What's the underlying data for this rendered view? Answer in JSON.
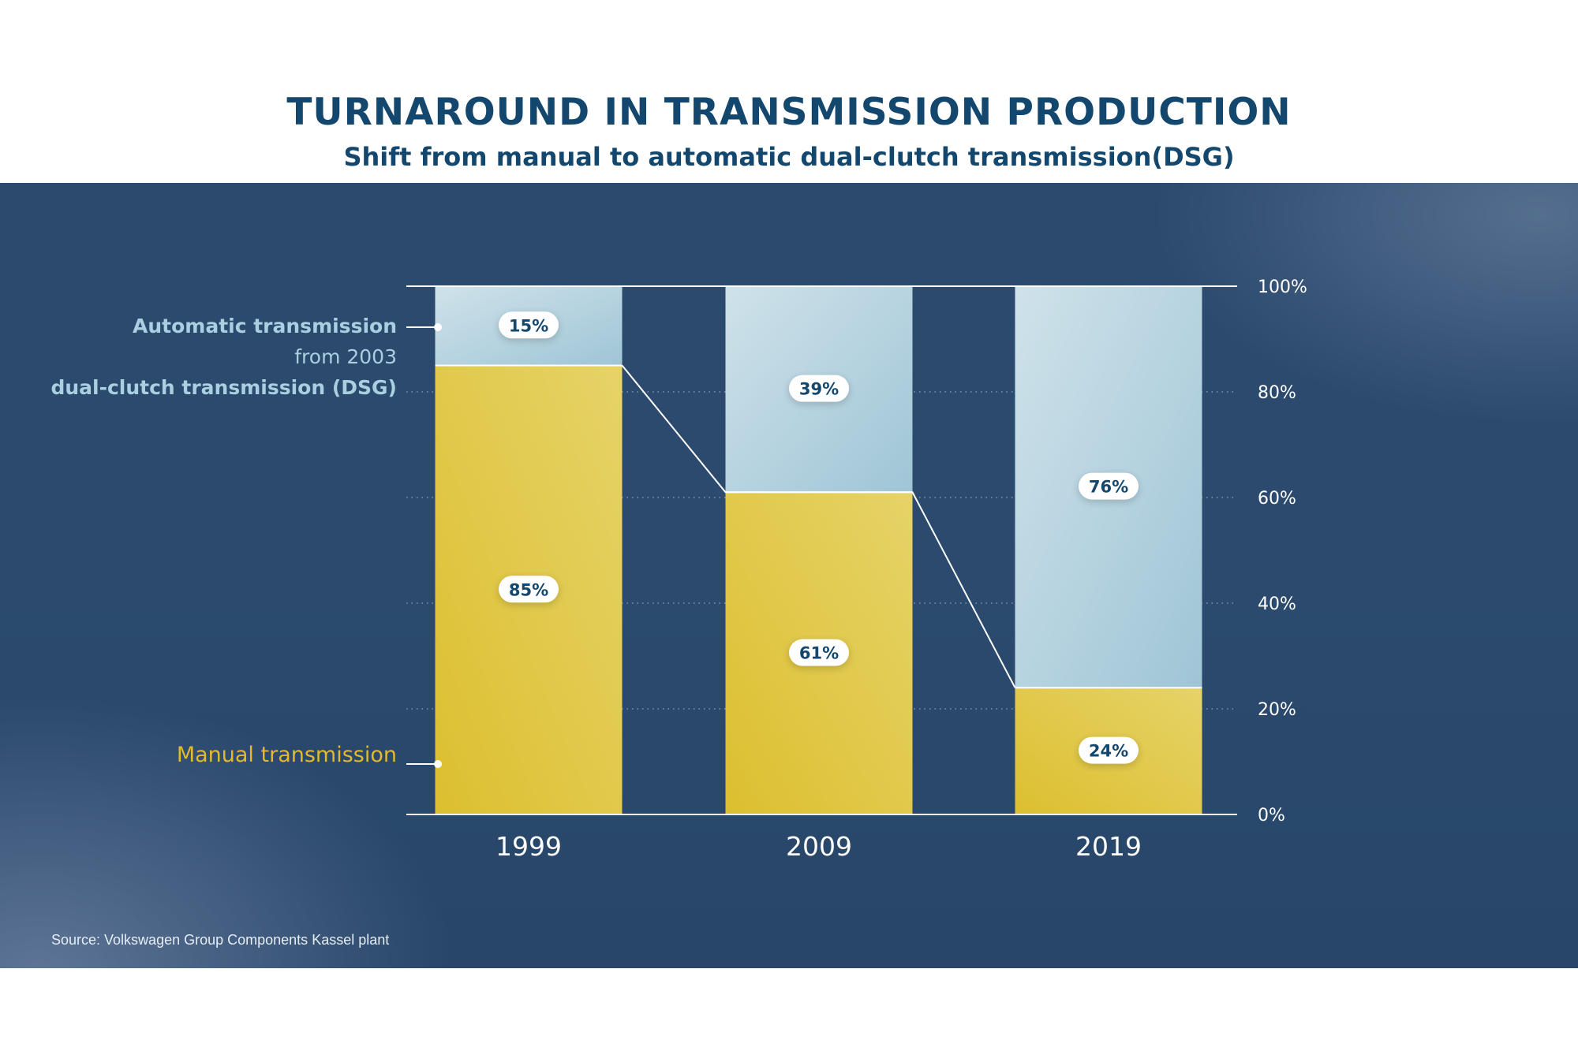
{
  "title": "TURNAROUND IN TRANSMISSION PRODUCTION",
  "subtitle": "Shift from manual to automatic dual-clutch transmission(DSG)",
  "source": "Source: Volkswagen Group Components Kassel plant",
  "legend": {
    "automatic_line1": "Automatic transmission",
    "automatic_line2": "from 2003",
    "automatic_line3": "dual-clutch transmission (DSG)",
    "manual": "Manual transmission"
  },
  "colors": {
    "manual": "#dcc33a",
    "automatic": "#a8cbd8",
    "automatic_legend": "#a9cfe0",
    "manual_legend": "#e3b92e",
    "axis_text": "#ffffff",
    "label_text": "#13476e"
  },
  "chart_data": {
    "type": "bar",
    "stacked": true,
    "categories": [
      "1999",
      "2009",
      "2019"
    ],
    "series": [
      {
        "name": "Manual transmission",
        "values": [
          85,
          61,
          24
        ],
        "labels": [
          "85%",
          "61%",
          "24%"
        ]
      },
      {
        "name": "Automatic transmission",
        "values": [
          15,
          39,
          76
        ],
        "labels": [
          "15%",
          "39%",
          "76%"
        ]
      }
    ],
    "ylim": [
      0,
      100
    ],
    "yticks": [
      0,
      20,
      40,
      60,
      80,
      100
    ],
    "ytick_labels": [
      "0%",
      "20%",
      "40%",
      "60%",
      "80%",
      "100%"
    ],
    "grid": "dotted",
    "legend_position": "left"
  }
}
